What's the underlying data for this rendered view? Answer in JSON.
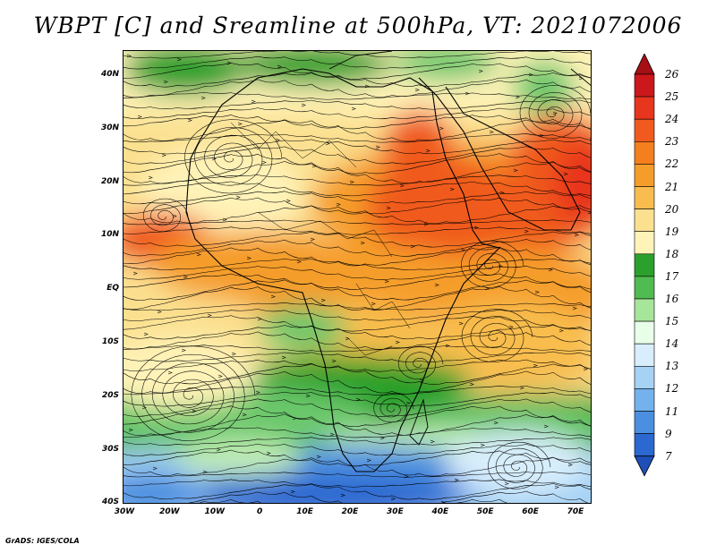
{
  "title": "WBPT [C] and Sreamline at 500hPa, VT: 2021072006",
  "credit": "GrADS: IGES/COLA",
  "map": {
    "lat_labels": [
      "40N",
      "30N",
      "20N",
      "10N",
      "EQ",
      "10S",
      "20S",
      "30S",
      "40S"
    ],
    "lon_labels": [
      "30W",
      "20W",
      "10W",
      "0",
      "10E",
      "20E",
      "30E",
      "40E",
      "50E",
      "60E",
      "70E"
    ],
    "lat_range": [
      -40,
      45
    ],
    "lon_range": [
      -30,
      75
    ]
  },
  "colorbar": {
    "labels": [
      "26",
      "25",
      "24",
      "23",
      "22",
      "21",
      "20",
      "19",
      "18",
      "17",
      "16",
      "15",
      "14",
      "13",
      "12",
      "11",
      "9",
      "7"
    ],
    "colors": [
      "#a50f15",
      "#cb181d",
      "#e8351d",
      "#f05a1f",
      "#f47f1e",
      "#f59d2a",
      "#f8bd4e",
      "#fbe08f",
      "#fff3b8",
      "#2ca02c",
      "#50bb50",
      "#a6e59a",
      "#e8ffe8",
      "#d8eefc",
      "#a6d2f4",
      "#73b2ec",
      "#4b8fe0",
      "#2b68d0",
      "#1f4fb8"
    ]
  },
  "fields": {
    "colors": {
      "deep_red": "#e8351d",
      "red_orange": "#f05a1f",
      "orange": "#f59d2a",
      "light_orange": "#f8bd4e",
      "yellow": "#fbe08f",
      "pale_yellow": "#fff3b8",
      "green": "#2ca02c",
      "light_green": "#6cc86c",
      "pale_green": "#c4efb8",
      "pale_blue": "#d8eefc",
      "light_blue": "#a6d2f4",
      "blue": "#4b8fe0",
      "dark_blue": "#2b68d0"
    }
  }
}
